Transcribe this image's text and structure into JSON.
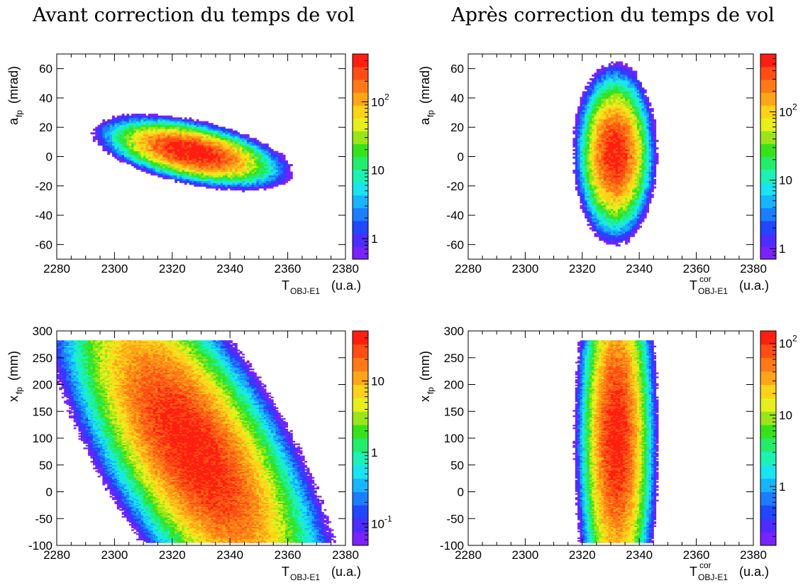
{
  "titles": {
    "left": "Avant correction du temps de vol",
    "right": "Après correction du temps de vol"
  },
  "chart_data": [
    {
      "type": "heatmap",
      "id": "tl",
      "xlabel": {
        "main": "T",
        "sub": "OBJ-E1",
        "sup": "",
        "unit": "(u.a.)"
      },
      "ylabel": {
        "main": "a",
        "sub": "fp",
        "unit": "(mrad)"
      },
      "xlim": [
        2280,
        2380
      ],
      "ylim": [
        -70,
        70
      ],
      "xticks": [
        2280,
        2300,
        2320,
        2340,
        2360,
        2380
      ],
      "yticks": [
        -60,
        -40,
        -20,
        0,
        20,
        40,
        60
      ],
      "colorbar": {
        "scale": "log",
        "range": [
          0.5,
          500
        ],
        "labels": [
          {
            "v": 1,
            "t": "1"
          },
          {
            "v": 10,
            "t": "10"
          },
          {
            "v": 100,
            "t": "10",
            "exp": "2"
          }
        ]
      },
      "distribution": {
        "cx": 2327,
        "cy": 3,
        "slope": -1.5,
        "sx": 8,
        "sy": 7,
        "peak": 500
      }
    },
    {
      "type": "heatmap",
      "id": "tr",
      "xlabel": {
        "main": "T",
        "sub": "OBJ-E1",
        "sup": "cor",
        "unit": "(u.a.)"
      },
      "ylabel": {
        "main": "a",
        "sub": "fp",
        "unit": "(mrad)"
      },
      "xlim": [
        2280,
        2380
      ],
      "ylim": [
        -70,
        70
      ],
      "xticks": [
        2280,
        2300,
        2320,
        2340,
        2360,
        2380
      ],
      "yticks": [
        -60,
        -40,
        -20,
        0,
        20,
        40,
        60
      ],
      "colorbar": {
        "scale": "log",
        "range": [
          0.7,
          700
        ],
        "labels": [
          {
            "v": 1,
            "t": "1"
          },
          {
            "v": 10,
            "t": "10"
          },
          {
            "v": 100,
            "t": "10",
            "exp": "2"
          }
        ]
      },
      "distribution": {
        "cx": 2331.5,
        "cy": 2,
        "slope": 0,
        "sx": 4,
        "sy": 17,
        "peak": 600
      }
    },
    {
      "type": "heatmap",
      "id": "bl",
      "xlabel": {
        "main": "T",
        "sub": "OBJ-E1",
        "sup": "",
        "unit": "(u.a.)"
      },
      "ylabel": {
        "main": "x",
        "sub": "fp",
        "unit": "(mm)"
      },
      "xlim": [
        2280,
        2380
      ],
      "ylim": [
        -100,
        300
      ],
      "xticks": [
        2280,
        2300,
        2320,
        2340,
        2360,
        2380
      ],
      "yticks": [
        -100,
        -50,
        0,
        50,
        100,
        150,
        200,
        250,
        300
      ],
      "colorbar": {
        "scale": "log",
        "range": [
          0.05,
          50
        ],
        "labels": [
          {
            "v": 0.1,
            "t": "10",
            "exp": "-1"
          },
          {
            "v": 1,
            "t": "1"
          },
          {
            "v": 10,
            "t": "10"
          }
        ]
      },
      "distribution": {
        "cx": 2327,
        "cy": 80,
        "slope": -11,
        "sx": 10,
        "sy": 110,
        "peak": 45
      }
    },
    {
      "type": "heatmap",
      "id": "br",
      "xlabel": {
        "main": "T",
        "sub": "OBJ-E1",
        "sup": "cor",
        "unit": "(u.a.)"
      },
      "ylabel": {
        "main": "x",
        "sub": "fp",
        "unit": "(mm)"
      },
      "xlim": [
        2280,
        2380
      ],
      "ylim": [
        -100,
        300
      ],
      "xticks": [
        2280,
        2300,
        2320,
        2340,
        2360,
        2380
      ],
      "yticks": [
        -100,
        -50,
        0,
        50,
        100,
        150,
        200,
        250,
        300
      ],
      "colorbar": {
        "scale": "log",
        "range": [
          0.15,
          150
        ],
        "labels": [
          {
            "v": 1,
            "t": "1"
          },
          {
            "v": 10,
            "t": "10"
          },
          {
            "v": 100,
            "t": "10",
            "exp": "2"
          }
        ]
      },
      "distribution": {
        "cx": 2332,
        "cy": 100,
        "slope": 0,
        "sx": 4,
        "sy": 110,
        "peak": 130
      }
    }
  ]
}
